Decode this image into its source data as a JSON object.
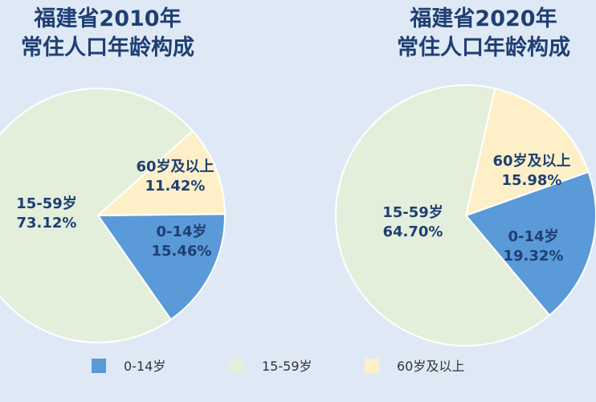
{
  "chart_data": [
    {
      "type": "pie",
      "title_line1": "福建省2010年",
      "title_line2": "常住人口年龄构成",
      "slices": [
        {
          "label": "0-14岁",
          "value": 15.46,
          "value_text": "15.46%",
          "color": "#5a9ad8"
        },
        {
          "label": "15-59岁",
          "value": 73.12,
          "value_text": "73.12%",
          "color": "#e3efdb"
        },
        {
          "label": "60岁及以上",
          "value": 11.42,
          "value_text": "11.42%",
          "color": "#fdf0c8"
        }
      ]
    },
    {
      "type": "pie",
      "title_line1": "福建省2020年",
      "title_line2": "常住人口年龄构成",
      "slices": [
        {
          "label": "0-14岁",
          "value": 19.32,
          "value_text": "19.32%",
          "color": "#5a9ad8"
        },
        {
          "label": "15-59岁",
          "value": 64.7,
          "value_text": "64.70%",
          "color": "#e3efdb"
        },
        {
          "label": "60岁及以上",
          "value": 15.98,
          "value_text": "15.98%",
          "color": "#fdf0c8"
        }
      ]
    }
  ],
  "legend": {
    "placement": "bottom",
    "items": [
      {
        "label": "0-14岁",
        "color": "#5a9ad8"
      },
      {
        "label": "15-59岁",
        "color": "#e3efdb"
      },
      {
        "label": "60岁及以上",
        "color": "#fdf0c8"
      }
    ]
  },
  "colors": {
    "background": "#dfe9f6",
    "title": "#1f3f73"
  }
}
